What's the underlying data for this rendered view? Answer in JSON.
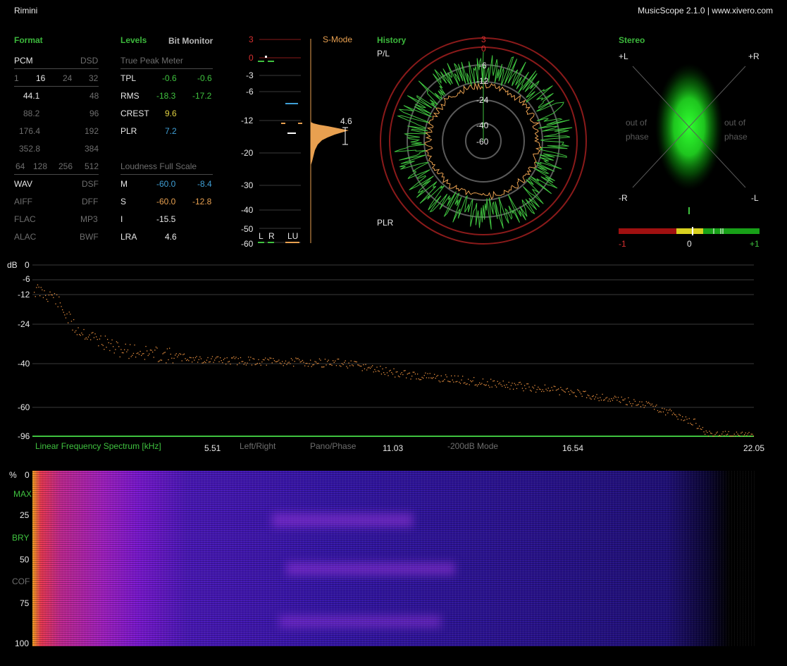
{
  "window": {
    "title": "Rimini",
    "version": "MusicScope 2.1.0 | www.xivero.com"
  },
  "format": {
    "title": "Format",
    "pcm": "PCM",
    "dsd": "DSD",
    "bits": [
      "1",
      "16",
      "24",
      "32"
    ],
    "rates_left": [
      "44.1",
      "88.2",
      "176.4",
      "352.8"
    ],
    "rates_right": [
      "48",
      "96",
      "192",
      "384"
    ],
    "dsd_rates": [
      "64",
      "128",
      "256",
      "512"
    ],
    "files_left": [
      "WAV",
      "AIFF",
      "FLAC",
      "ALAC"
    ],
    "files_right": [
      "DSF",
      "DFF",
      "MP3",
      "BWF"
    ]
  },
  "levels": {
    "title": "Levels",
    "bit_monitor": "Bit Monitor",
    "true_peak_title": "True Peak Meter",
    "rows": [
      {
        "label": "TPL",
        "a": "-0.6",
        "b": "-0.6"
      },
      {
        "label": "RMS",
        "a": "-18.3",
        "b": "-17.2"
      },
      {
        "label": "CREST",
        "a": "9.6"
      },
      {
        "label": "PLR",
        "a": "7.2"
      }
    ],
    "loudness_title": "Loudness Full Scale",
    "loudness": [
      {
        "label": "M",
        "a": "-60.0",
        "b": "-8.4"
      },
      {
        "label": "S",
        "a": "-60.0",
        "b": "-12.8"
      },
      {
        "label": "I",
        "a": "-15.5"
      },
      {
        "label": "LRA",
        "a": "4.6"
      }
    ]
  },
  "meter": {
    "scale": [
      "3",
      "0",
      "-3",
      "-6",
      "-12",
      "-20",
      "-30",
      "-40",
      "-50",
      "-60"
    ],
    "smode": "S-Mode",
    "lra_value": "4.6",
    "ch_l": "L",
    "ch_r": "R",
    "ch_lu": "LU"
  },
  "history": {
    "title": "History",
    "pl": "P/L",
    "plr": "PLR",
    "rings": [
      "3",
      "0",
      "-6",
      "-12",
      "-24",
      "-40",
      "-60"
    ]
  },
  "stereo": {
    "title": "Stereo",
    "plus_l": "+L",
    "plus_r": "+R",
    "minus_r": "-R",
    "minus_l": "-L",
    "out_of_phase": "out of phase",
    "corr_labels": [
      "-1",
      "0",
      "+1"
    ],
    "correlation": 0.05
  },
  "spectrum": {
    "unit": "dB",
    "ylabels": [
      "0",
      "-6",
      "-12",
      "-24",
      "-40",
      "-60",
      "-96"
    ],
    "title": "Linear Frequency Spectrum [kHz]",
    "xlabels": [
      "5.51",
      "11.03",
      "16.54",
      "22.05"
    ],
    "options": [
      "Left/Right",
      "Pano/Phase",
      "-200dB Mode"
    ]
  },
  "spectrogram": {
    "ylabels": [
      "%",
      "0",
      "MAX",
      "25",
      "BRY",
      "50",
      "COF",
      "75",
      "100"
    ]
  },
  "colors": {
    "accent": "#3cb83c",
    "orange": "#e8a050",
    "blue": "#3f9fd6",
    "red": "#d83030"
  }
}
